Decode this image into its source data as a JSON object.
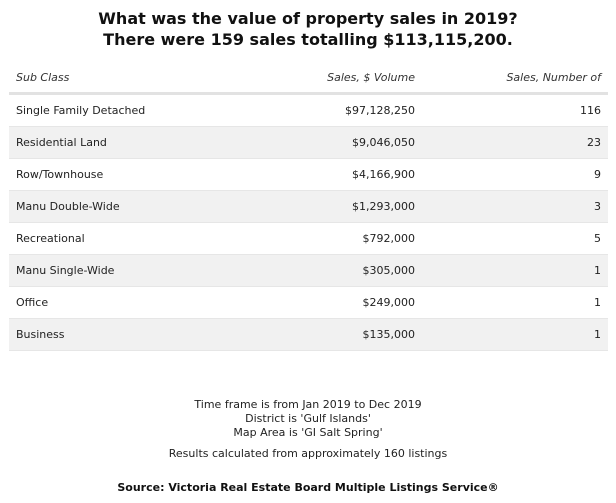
{
  "title": {
    "line1": "What was the value of property sales in 2019?",
    "line2": "There were 159 sales totalling $113,115,200."
  },
  "table": {
    "headers": [
      "Sub Class",
      "Sales, $ Volume",
      "Sales, Number of"
    ],
    "rows": [
      {
        "subclass": "Single Family Detached",
        "volume": "$97,128,250",
        "count": "116"
      },
      {
        "subclass": "Residential Land",
        "volume": "$9,046,050",
        "count": "23"
      },
      {
        "subclass": "Row/Townhouse",
        "volume": "$4,166,900",
        "count": "9"
      },
      {
        "subclass": "Manu Double-Wide",
        "volume": "$1,293,000",
        "count": "3"
      },
      {
        "subclass": "Recreational",
        "volume": "$792,000",
        "count": "5"
      },
      {
        "subclass": "Manu Single-Wide",
        "volume": "$305,000",
        "count": "1"
      },
      {
        "subclass": "Office",
        "volume": "$249,000",
        "count": "1"
      },
      {
        "subclass": "Business",
        "volume": "$135,000",
        "count": "1"
      }
    ]
  },
  "footer": {
    "timeframe": "Time frame is from Jan 2019 to Dec 2019",
    "district": "District is 'Gulf Islands'",
    "map_area": "Map Area is 'GI Salt Spring'",
    "results": "Results calculated from approximately 160 listings",
    "source": "Source: Victoria Real Estate Board Multiple Listings Service®"
  }
}
